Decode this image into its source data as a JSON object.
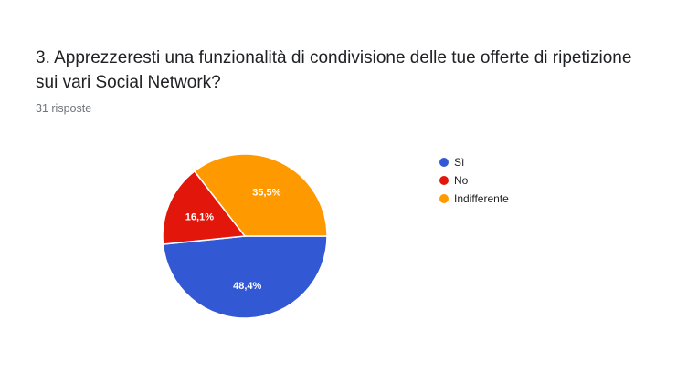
{
  "question": {
    "title": "3. Apprezzeresti una funzionalità di condivisione delle tue offerte di ripetizione sui vari Social Network?",
    "responses": "31 risposte"
  },
  "chart_data": {
    "type": "pie",
    "slices": [
      {
        "label": "Sì",
        "value": 48.4,
        "display": "48,4%",
        "color": "#3358d4"
      },
      {
        "label": "No",
        "value": 16.1,
        "display": "16,1%",
        "color": "#e3160b"
      },
      {
        "label": "Indifferente",
        "value": 35.5,
        "display": "35,5%",
        "color": "#ff9900"
      }
    ],
    "legend_position": "right"
  }
}
